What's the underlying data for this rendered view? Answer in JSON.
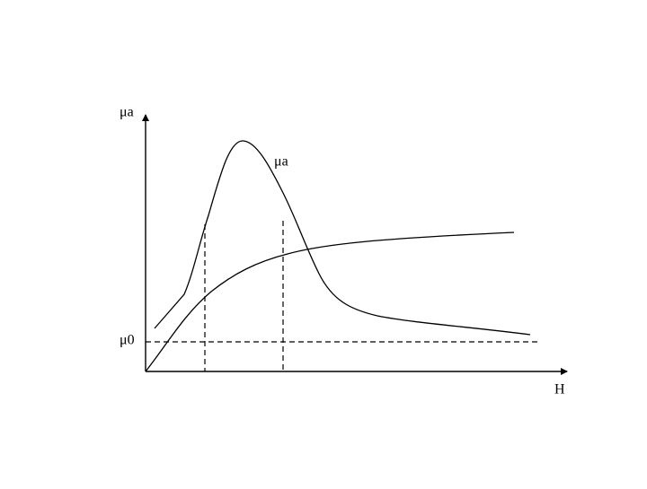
{
  "labels": {
    "y_axis": "μa",
    "curve": "μa",
    "baseline": "μ0",
    "x_axis": "H"
  }
}
